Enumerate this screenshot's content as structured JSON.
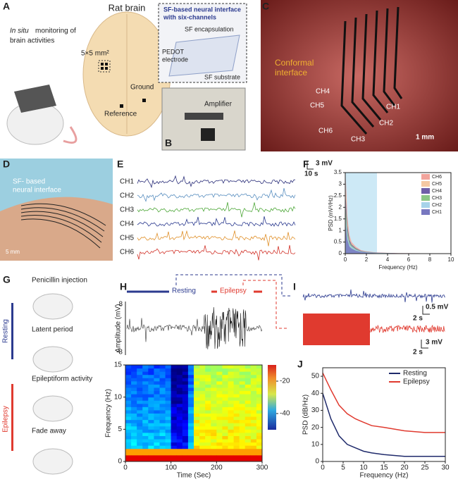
{
  "panel_labels": [
    "A",
    "B",
    "C",
    "D",
    "E",
    "F",
    "G",
    "H",
    "I",
    "J"
  ],
  "panel_a": {
    "in_situ": "In situ",
    "lead_1": "monitoring of",
    "lead_2": "brain activities",
    "title": "Rat brain",
    "area": "5×5 mm²",
    "ground": "Ground",
    "reference": "Reference",
    "inset_title_1": "SF-based neural interface",
    "inset_title_2": "with six-channels",
    "encapsulation": "SF encapsulation",
    "electrode_1": "PEDOT",
    "electrode_2": "electrode",
    "substrate": "SF substrate",
    "amplifier": "Amplifier"
  },
  "panel_c": {
    "conformal_1": "Conformal",
    "conformal_2": "interface",
    "channels": [
      "CH1",
      "CH2",
      "CH3",
      "CH4",
      "CH5",
      "CH6"
    ],
    "scale": "1 mm"
  },
  "panel_d": {
    "label_1": "SF- based",
    "label_2": "neural interface",
    "scale": "5 mm"
  },
  "panel_e": {
    "channels": [
      "CH1",
      "CH2",
      "CH3",
      "CH4",
      "CH5",
      "CH6"
    ],
    "scale_v": "3 mV",
    "scale_t": "10 s"
  },
  "panel_g": {
    "steps": [
      "Penicillin injection",
      "Latent period",
      "Epileptiform activity",
      "Fade away"
    ],
    "phases": [
      "Resting",
      "Epilepsy"
    ]
  },
  "panel_h": {
    "resting": "Resting",
    "epilepsy": "Epilepsy",
    "amp_label": "Amplitude (mV)",
    "amp_ticks": [
      8,
      -8
    ]
  },
  "panel_i": {
    "scale_v1": "0.5 mV",
    "scale_t1": "2 s",
    "scale_v2": "3 mV",
    "scale_t2": "2 s"
  },
  "chart_data": [
    {
      "type": "area",
      "x_label": "Frequency (Hz)",
      "y_label": "PSD (mV²/Hz)",
      "xlim": [
        0,
        10
      ],
      "ylim": [
        0,
        3.5
      ],
      "xticks": [
        0,
        2,
        4,
        6,
        8,
        10
      ],
      "yticks": [
        0,
        0.5,
        1,
        1.5,
        2,
        2.5,
        3,
        3.5
      ],
      "shaded_range": [
        0,
        3
      ],
      "shade_color": "#cde9f6",
      "x": [
        0.05,
        0.2,
        0.4,
        0.6,
        1,
        1.5,
        2,
        3,
        5,
        10
      ],
      "series": [
        {
          "name": "CH6",
          "color": "#f2a49c",
          "values": [
            3.3,
            1.6,
            0.8,
            0.5,
            0.3,
            0.15,
            0.1,
            0.05,
            0.02,
            0.01
          ]
        },
        {
          "name": "CH5",
          "color": "#f5c9a3",
          "values": [
            2.8,
            1.4,
            0.7,
            0.45,
            0.27,
            0.13,
            0.09,
            0.04,
            0.02,
            0.01
          ]
        },
        {
          "name": "CH4",
          "color": "#6f5fa8",
          "values": [
            2.4,
            1.2,
            0.6,
            0.4,
            0.24,
            0.12,
            0.08,
            0.04,
            0.02,
            0.01
          ]
        },
        {
          "name": "CH3",
          "color": "#8cc886",
          "values": [
            2,
            1,
            0.5,
            0.35,
            0.2,
            0.1,
            0.07,
            0.03,
            0.01,
            0.01
          ]
        },
        {
          "name": "CH2",
          "color": "#a6d3ea",
          "values": [
            1.6,
            0.8,
            0.4,
            0.3,
            0.17,
            0.09,
            0.06,
            0.03,
            0.01,
            0.01
          ]
        },
        {
          "name": "CH1",
          "color": "#7878c0",
          "values": [
            1.2,
            0.6,
            0.3,
            0.22,
            0.13,
            0.07,
            0.05,
            0.02,
            0.01,
            0.01
          ]
        }
      ]
    },
    {
      "type": "heatmap",
      "x_label": "Time (Sec)",
      "y_label": "Frequency (Hz)",
      "xlim": [
        0,
        300
      ],
      "ylim": [
        0,
        15
      ],
      "xticks": [
        0,
        100,
        200,
        300
      ],
      "yticks": [
        0,
        5,
        10,
        15
      ],
      "clim": [
        -50,
        -10
      ],
      "cticks": [
        -20,
        -40
      ]
    },
    {
      "type": "line",
      "x_label": "Frequency (Hz)",
      "y_label": "PSD (dB/Hz)",
      "xlim": [
        0,
        30
      ],
      "ylim": [
        0,
        55
      ],
      "xticks": [
        0,
        5,
        10,
        15,
        20,
        25,
        30
      ],
      "yticks": [
        0,
        10,
        20,
        30,
        40,
        50
      ],
      "x": [
        0,
        2,
        4,
        6,
        8,
        10,
        12,
        15,
        20,
        25,
        30
      ],
      "series": [
        {
          "name": "Resting",
          "color": "#1f2a6b",
          "values": [
            40,
            25,
            15,
            10,
            8,
            6,
            5,
            4,
            3,
            3,
            3
          ]
        },
        {
          "name": "Epilepsy",
          "color": "#e03a2f",
          "values": [
            52,
            42,
            33,
            28,
            25,
            23,
            21,
            20,
            18,
            17,
            17
          ]
        }
      ]
    }
  ]
}
